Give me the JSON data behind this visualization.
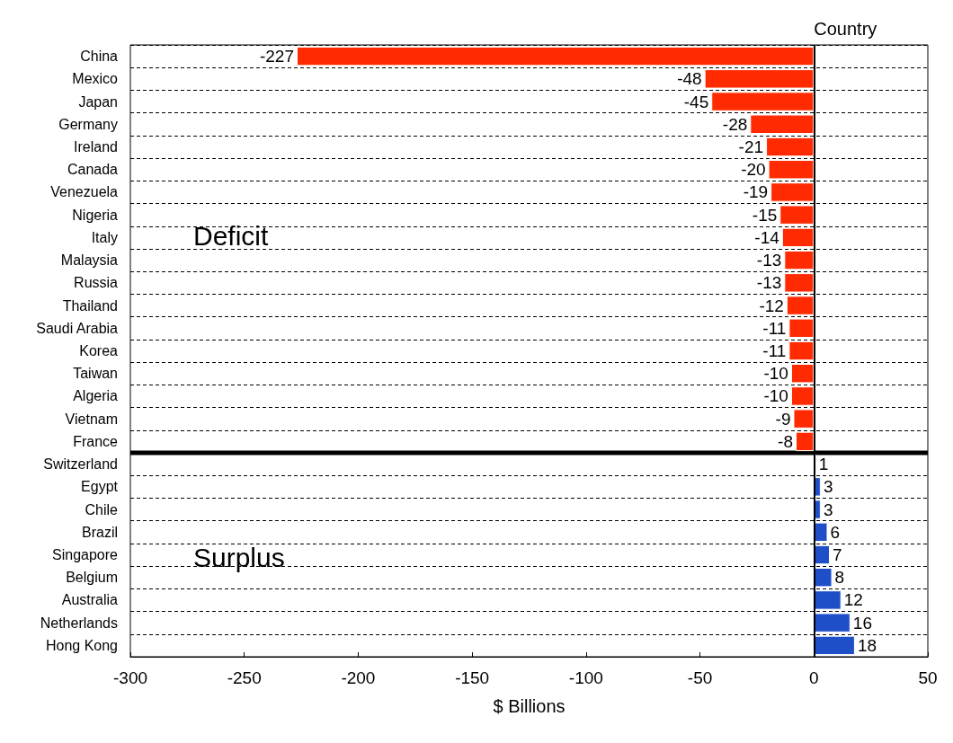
{
  "chart_data": {
    "type": "bar",
    "orientation": "horizontal",
    "ylabel": "Country",
    "xlabel": "$ Billions",
    "categories": [
      "China",
      "Mexico",
      "Japan",
      "Germany",
      "Ireland",
      "Canada",
      "Venezuela",
      "Nigeria",
      "Italy",
      "Malaysia",
      "Russia",
      "Thailand",
      "Saudi Arabia",
      "Korea",
      "Taiwan",
      "Algeria",
      "Vietnam",
      "France",
      "Switzerland",
      "Egypt",
      "Chile",
      "Brazil",
      "Singapore",
      "Belgium",
      "Australia",
      "Netherlands",
      "Hong Kong"
    ],
    "values": [
      -227,
      -48,
      -45,
      -28,
      -21,
      -20,
      -19,
      -15,
      -14,
      -13,
      -13,
      -12,
      -11,
      -11,
      -10,
      -10,
      -9,
      -8,
      1,
      3,
      3,
      6,
      7,
      8,
      12,
      16,
      18
    ],
    "colors": [
      "#ff2a00",
      "#ff2a00",
      "#ff2a00",
      "#ff2a00",
      "#ff2a00",
      "#ff2a00",
      "#ff2a00",
      "#ff2a00",
      "#ff2a00",
      "#ff2a00",
      "#ff2a00",
      "#ff2a00",
      "#ff2a00",
      "#ff2a00",
      "#ff2a00",
      "#ff2a00",
      "#ff2a00",
      "#ff2a00",
      "#1f4fc8",
      "#1f4fc8",
      "#1f4fc8",
      "#1f4fc8",
      "#1f4fc8",
      "#1f4fc8",
      "#1f4fc8",
      "#1f4fc8",
      "#1f4fc8"
    ],
    "xlim": [
      -300,
      50
    ],
    "xticks": [
      -300,
      -250,
      -200,
      -150,
      -100,
      -50,
      0,
      50
    ],
    "grid": "y",
    "data_labels": true,
    "ref_lines": [
      {
        "axis": "x",
        "value": 0
      },
      {
        "axis": "y",
        "value": "Switzerland"
      }
    ],
    "annotations": [
      "Deficit",
      "Surplus"
    ]
  }
}
